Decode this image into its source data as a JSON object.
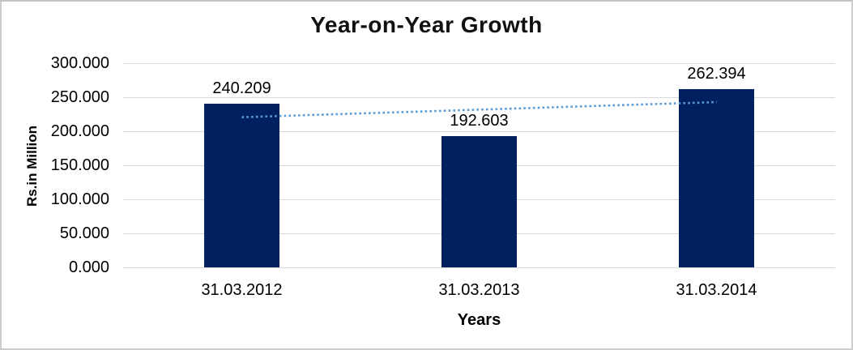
{
  "window": {
    "background": "#ffffff",
    "border_color": "#cccccc"
  },
  "chart_data": {
    "type": "bar",
    "title": "Year-on-Year Growth",
    "categories": [
      "31.03.2012",
      "31.03.2013",
      "31.03.2014"
    ],
    "values": [
      240.209,
      192.603,
      262.394
    ],
    "data_labels": [
      "240.209",
      "192.603",
      "262.394"
    ],
    "xlabel": "Years",
    "ylabel": "Rs.in Million",
    "y_ticks": [
      "300.000",
      "250.000",
      "200.000",
      "150.000",
      "100.000",
      "50.000",
      "0.000"
    ],
    "ylim": [
      0,
      300
    ],
    "grid": true,
    "legend_position": "none",
    "colors": {
      "bar": "#002060",
      "gridline": "#d9d9d9",
      "trendline": "#5b9bd5",
      "text": "#000000"
    },
    "trendline": {
      "type": "linear",
      "style": "dotted"
    }
  }
}
